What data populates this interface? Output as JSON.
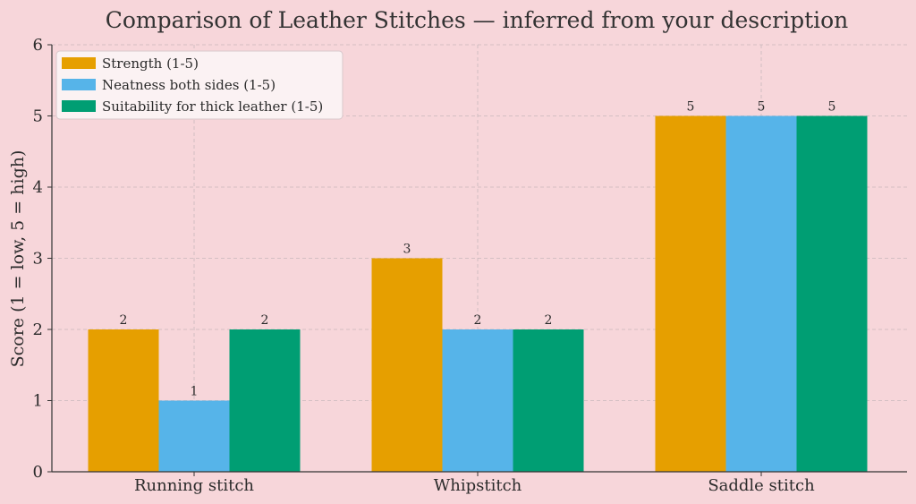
{
  "chart_data": {
    "type": "bar",
    "title": "Comparison of Leather Stitches — inferred from your description",
    "xlabel": "",
    "ylabel": "Score (1 = low, 5 = high)",
    "categories": [
      "Running stitch",
      "Whipstitch",
      "Saddle stitch"
    ],
    "series": [
      {
        "name": "Strength (1-5)",
        "values": [
          2,
          3,
          5
        ],
        "color": "#e69f00"
      },
      {
        "name": "Neatness both sides (1-5)",
        "values": [
          1,
          2,
          5
        ],
        "color": "#56b4e9"
      },
      {
        "name": "Suitability for thick leather (1-5)",
        "values": [
          2,
          2,
          5
        ],
        "color": "#009e73"
      }
    ],
    "ylim": [
      0,
      6
    ],
    "yticks": [
      "0",
      "1",
      "2",
      "3",
      "4",
      "5",
      "6"
    ],
    "grid": true,
    "legend_position": "top-left",
    "data_labels": true
  },
  "colors": {
    "background": "#f7d6da",
    "legend_background": "#fbf2f3"
  }
}
